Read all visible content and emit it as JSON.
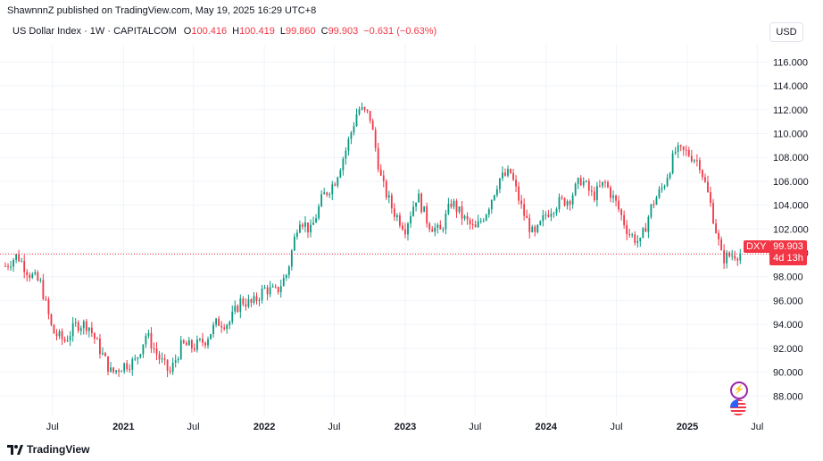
{
  "header": {
    "text": "ShawnnnZ published on TradingView.com, May 19, 2025 16:29 UTC+8"
  },
  "legend": {
    "symbol": "US Dollar Index · 1W · CAPITALCOM",
    "o_key": "O",
    "o_val": "100.416",
    "h_key": "H",
    "h_val": "100.419",
    "l_key": "L",
    "l_val": "99.860",
    "c_key": "C",
    "c_val": "99.903",
    "change": "−0.631 (−0.63%)"
  },
  "currency_button": "USD",
  "price_badge": {
    "symbol": "DXY",
    "price": "99.903",
    "countdown": "4d 13h"
  },
  "footer": {
    "brand": "TradingView"
  },
  "colors": {
    "up": "#089981",
    "down": "#f23645",
    "grid": "#f0f3fa",
    "axis_text": "#131722"
  },
  "chart_data": {
    "type": "candlestick",
    "title": "US Dollar Index · 1W · CAPITALCOM",
    "ylabel": "USD",
    "ylim": [
      86.6,
      116.7
    ],
    "y_ticks": [
      "88.000",
      "90.000",
      "92.000",
      "94.000",
      "96.000",
      "98.000",
      "100.000",
      "102.000",
      "104.000",
      "106.000",
      "108.000",
      "110.000",
      "112.000",
      "114.000",
      "116.000"
    ],
    "x_ticks": [
      {
        "label": "Jul",
        "date": "2020-07"
      },
      {
        "label": "2021",
        "date": "2021-01"
      },
      {
        "label": "Jul",
        "date": "2021-07"
      },
      {
        "label": "2022",
        "date": "2022-01"
      },
      {
        "label": "Jul",
        "date": "2022-07"
      },
      {
        "label": "2023",
        "date": "2023-01"
      },
      {
        "label": "Jul",
        "date": "2023-07"
      },
      {
        "label": "2024",
        "date": "2024-01"
      },
      {
        "label": "Jul",
        "date": "2024-07"
      },
      {
        "label": "2025",
        "date": "2025-01"
      },
      {
        "label": "Jul",
        "date": "2025-07"
      }
    ],
    "last_price": 99.903,
    "close_path": [
      [
        "2020-03",
        98.9
      ],
      [
        "2020-04",
        99.8
      ],
      [
        "2020-05",
        98.3
      ],
      [
        "2020-06",
        97.4
      ],
      [
        "2020-07",
        93.4
      ],
      [
        "2020-08",
        92.6
      ],
      [
        "2020-09",
        94.0
      ],
      [
        "2020-10",
        94.0
      ],
      [
        "2020-11",
        91.9
      ],
      [
        "2020-12",
        89.9
      ],
      [
        "2021-01",
        90.6
      ],
      [
        "2021-02",
        90.9
      ],
      [
        "2021-03",
        93.2
      ],
      [
        "2021-04",
        91.3
      ],
      [
        "2021-05",
        89.9
      ],
      [
        "2021-06",
        92.3
      ],
      [
        "2021-07",
        92.1
      ],
      [
        "2021-08",
        92.7
      ],
      [
        "2021-09",
        94.2
      ],
      [
        "2021-10",
        94.1
      ],
      [
        "2021-11",
        96.0
      ],
      [
        "2021-12",
        95.7
      ],
      [
        "2022-01",
        97.0
      ],
      [
        "2022-02",
        96.7
      ],
      [
        "2022-03",
        98.3
      ],
      [
        "2022-04",
        103.0
      ],
      [
        "2022-05",
        101.8
      ],
      [
        "2022-06",
        104.7
      ],
      [
        "2022-07",
        105.9
      ],
      [
        "2022-08",
        108.7
      ],
      [
        "2022-09",
        112.1
      ],
      [
        "2022-10",
        111.5
      ],
      [
        "2022-11",
        105.9
      ],
      [
        "2022-12",
        103.5
      ],
      [
        "2023-01",
        102.1
      ],
      [
        "2023-02",
        104.9
      ],
      [
        "2023-03",
        102.5
      ],
      [
        "2023-04",
        101.7
      ],
      [
        "2023-05",
        104.3
      ],
      [
        "2023-06",
        102.9
      ],
      [
        "2023-07",
        101.9
      ],
      [
        "2023-08",
        103.6
      ],
      [
        "2023-09",
        106.2
      ],
      [
        "2023-10",
        106.7
      ],
      [
        "2023-11",
        103.5
      ],
      [
        "2023-12",
        101.3
      ],
      [
        "2024-01",
        103.3
      ],
      [
        "2024-02",
        104.2
      ],
      [
        "2024-03",
        104.5
      ],
      [
        "2024-04",
        106.2
      ],
      [
        "2024-05",
        104.7
      ],
      [
        "2024-06",
        105.9
      ],
      [
        "2024-07",
        104.1
      ],
      [
        "2024-08",
        101.7
      ],
      [
        "2024-09",
        100.8
      ],
      [
        "2024-10",
        104.0
      ],
      [
        "2024-11",
        105.7
      ],
      [
        "2024-12",
        108.5
      ],
      [
        "2025-01",
        108.4
      ],
      [
        "2025-02",
        107.6
      ],
      [
        "2025-03",
        104.2
      ],
      [
        "2025-04",
        99.5
      ],
      [
        "2025-05",
        99.9
      ]
    ]
  }
}
